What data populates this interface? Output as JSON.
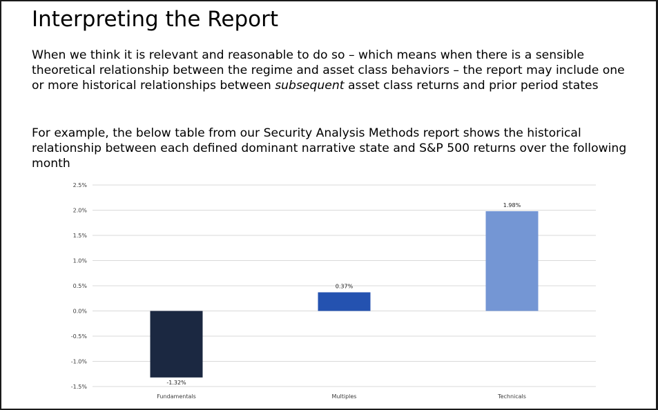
{
  "slide": {
    "title": "Interpreting the Report",
    "para1": {
      "before": "When we think it is relevant and reasonable to do so – which means when there is a sensible theoretical relationship between the regime and asset class behaviors – the report may include one or more historical relationships between ",
      "emphasis": "subsequent",
      "after": " asset class returns and prior period states"
    },
    "para2": "For example, the below table from our Security Analysis Methods report shows the historical relationship between each defined dominant narrative state and S&P 500 returns over the following month"
  },
  "chart_data": {
    "type": "bar",
    "title": "",
    "xlabel": "",
    "ylabel": "",
    "categories": [
      "Fundamentals",
      "Multiples",
      "Technicals"
    ],
    "values": [
      -1.32,
      0.37,
      1.98
    ],
    "value_labels": [
      "-1.32%",
      "0.37%",
      "1.98%"
    ],
    "bar_colors": [
      "#1b2841",
      "#2452b0",
      "#7496d4"
    ],
    "ylim": [
      -1.5,
      2.5
    ],
    "yticks": [
      2.5,
      2.0,
      1.5,
      1.0,
      0.5,
      0.0,
      -0.5,
      -1.0,
      -1.5
    ],
    "ytick_labels": [
      "2.5%",
      "2.0%",
      "1.5%",
      "1.0%",
      "0.5%",
      "0.0%",
      "-0.5%",
      "-1.0%",
      "-1.5%"
    ],
    "grid": true,
    "legend": "none"
  }
}
